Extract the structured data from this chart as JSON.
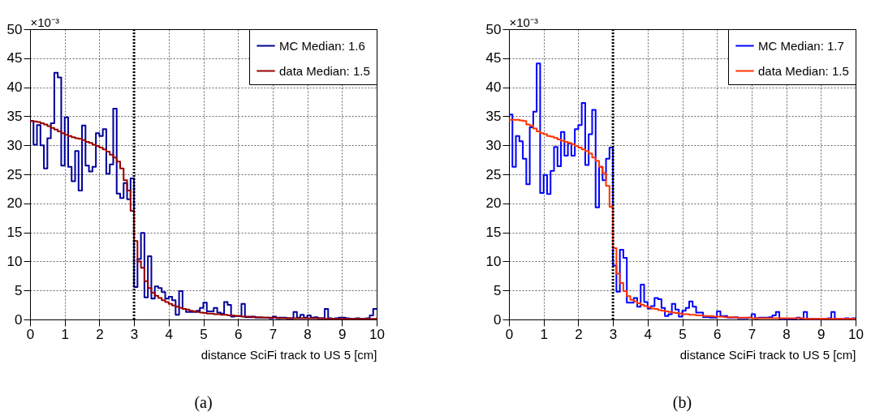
{
  "chart_data": [
    {
      "type": "histogram",
      "xlabel": "distance SciFi track to US 5 [cm]",
      "ylabel": "×10⁻³",
      "annotations": [
        "(a)"
      ],
      "xlim": [
        0,
        10
      ],
      "xticks": [
        0,
        1,
        2,
        3,
        4,
        5,
        6,
        7,
        8,
        9,
        10
      ],
      "ylim": [
        0,
        50
      ],
      "yticks": [
        0,
        5,
        10,
        15,
        20,
        25,
        30,
        35,
        40,
        45,
        50
      ],
      "grid": true,
      "legend": "top right",
      "bins": [
        0,
        0.1,
        0.2,
        0.3,
        0.4,
        0.5,
        0.6,
        0.7,
        0.8,
        0.9,
        1,
        1.1,
        1.2,
        1.3,
        1.4,
        1.5,
        1.6,
        1.7,
        1.8,
        1.9,
        2,
        2.1,
        2.2,
        2.3,
        2.4,
        2.5,
        2.6,
        2.7,
        2.8,
        2.9,
        3,
        3.1,
        3.2,
        3.3,
        3.4,
        3.5,
        3.6,
        3.7,
        3.8,
        3.9,
        4,
        4.1,
        4.2,
        4.3,
        4.4,
        4.5,
        4.6,
        4.7,
        4.8,
        4.9,
        5,
        5.1,
        5.2,
        5.3,
        5.4,
        5.5,
        5.6,
        5.7,
        5.8,
        5.9,
        6,
        6.1,
        6.2,
        6.3,
        6.4,
        6.5,
        6.6,
        6.7,
        6.8,
        6.9,
        7,
        7.1,
        7.2,
        7.3,
        7.4,
        7.5,
        7.6,
        7.7,
        7.8,
        7.9,
        8,
        8.1,
        8.2,
        8.3,
        8.4,
        8.5,
        8.6,
        8.7,
        8.8,
        8.9,
        9,
        9.1,
        9.2,
        9.3,
        9.4,
        9.5,
        9.6,
        9.7,
        9.8,
        9.9,
        10
      ],
      "ref_lines": [
        {
          "axis": "x",
          "value": 3,
          "color": "#000000",
          "line_style": "dotted"
        }
      ],
      "series": [
        {
          "name": "MC Median: 1.6",
          "color": "#000099",
          "values": [
            34.2,
            30.1,
            33.5,
            30.0,
            26.0,
            31.2,
            33.8,
            42.5,
            41.7,
            26.5,
            34.8,
            26.3,
            23.8,
            29.0,
            22.2,
            33.4,
            26.5,
            25.5,
            26.3,
            32.1,
            31.6,
            32.8,
            25.1,
            26.7,
            36.3,
            21.7,
            20.9,
            23.5,
            20.7,
            24.3,
            5.6,
            10.4,
            14.9,
            3.8,
            10.9,
            3.6,
            5.7,
            5.4,
            4.7,
            3.6,
            3.9,
            3.3,
            0.8,
            4.9,
            1.8,
            1.3,
            1.3,
            1.3,
            1.5,
            2.0,
            2.9,
            1.4,
            1.4,
            2.0,
            1.2,
            1.0,
            3.0,
            2.5,
            0.5,
            0.6,
            0.6,
            2.7,
            0.4,
            0.4,
            0.5,
            0.3,
            0.3,
            0.3,
            0.3,
            0.2,
            0.5,
            0.2,
            0.3,
            0.3,
            0.2,
            0.2,
            1.3,
            0.3,
            0.8,
            0.3,
            0.7,
            0.3,
            0.4,
            0.2,
            0.2,
            1.8,
            0.2,
            0.1,
            0.2,
            0.3,
            0.3,
            0.2,
            0.1,
            0.1,
            0.2,
            0.1,
            0.1,
            0.2,
            0.7,
            1.8
          ]
        },
        {
          "name": "data Median: 1.5",
          "color": "#990000",
          "values": [
            34.2,
            34.1,
            34.0,
            33.8,
            33.6,
            33.3,
            33.0,
            32.7,
            32.4,
            32.1,
            31.8,
            31.6,
            31.4,
            31.2,
            31.1,
            30.9,
            30.6,
            30.4,
            30.1,
            29.9,
            29.6,
            29.3,
            28.9,
            28.4,
            27.9,
            27.2,
            26.0,
            24.0,
            22.2,
            18.7,
            13.5,
            10.0,
            8.9,
            6.6,
            5.4,
            4.6,
            4.1,
            3.7,
            3.3,
            3.0,
            2.7,
            2.4,
            2.2,
            2.0,
            1.8,
            1.7,
            1.5,
            1.4,
            1.3,
            1.2,
            1.1,
            1.0,
            1.0,
            0.9,
            0.9,
            0.8,
            0.8,
            0.7,
            0.7,
            0.6,
            0.6,
            0.5,
            0.5,
            0.5,
            0.4,
            0.4,
            0.4,
            0.3,
            0.3,
            0.3,
            0.3,
            0.3,
            0.2,
            0.2,
            0.2,
            0.2,
            0.2,
            0.2,
            0.2,
            0.2,
            0.2,
            0.2,
            0.2,
            0.2,
            0.2,
            0.1,
            0.1,
            0.1,
            0.1,
            0.1,
            0.1,
            0.1,
            0.1,
            0.1,
            0.1,
            0.1,
            0.1,
            0.1,
            0.1,
            0.1
          ]
        }
      ]
    },
    {
      "type": "histogram",
      "xlabel": "distance SciFi track to US 5 [cm]",
      "ylabel": "×10⁻³",
      "annotations": [
        "(b)"
      ],
      "xlim": [
        0,
        10
      ],
      "xticks": [
        0,
        1,
        2,
        3,
        4,
        5,
        6,
        7,
        8,
        9,
        10
      ],
      "ylim": [
        0,
        50
      ],
      "yticks": [
        0,
        5,
        10,
        15,
        20,
        25,
        30,
        35,
        40,
        45,
        50
      ],
      "grid": true,
      "legend": "top right",
      "bins": [
        0,
        0.1,
        0.2,
        0.3,
        0.4,
        0.5,
        0.6,
        0.7,
        0.8,
        0.9,
        1,
        1.1,
        1.2,
        1.3,
        1.4,
        1.5,
        1.6,
        1.7,
        1.8,
        1.9,
        2,
        2.1,
        2.2,
        2.3,
        2.4,
        2.5,
        2.6,
        2.7,
        2.8,
        2.9,
        3,
        3.1,
        3.2,
        3.3,
        3.4,
        3.5,
        3.6,
        3.7,
        3.8,
        3.9,
        4,
        4.1,
        4.2,
        4.3,
        4.4,
        4.5,
        4.6,
        4.7,
        4.8,
        4.9,
        5,
        5.1,
        5.2,
        5.3,
        5.4,
        5.5,
        5.6,
        5.7,
        5.8,
        5.9,
        6,
        6.1,
        6.2,
        6.3,
        6.4,
        6.5,
        6.6,
        6.7,
        6.8,
        6.9,
        7,
        7.1,
        7.2,
        7.3,
        7.4,
        7.5,
        7.6,
        7.7,
        7.8,
        7.9,
        8,
        8.1,
        8.2,
        8.3,
        8.4,
        8.5,
        8.6,
        8.7,
        8.8,
        8.9,
        9,
        9.1,
        9.2,
        9.3,
        9.4,
        9.5,
        9.6,
        9.7,
        9.8,
        9.9,
        10
      ],
      "ref_lines": [
        {
          "axis": "x",
          "value": 3,
          "color": "#000000",
          "line_style": "dotted"
        }
      ],
      "series": [
        {
          "name": "MC Median: 1.7",
          "color": "#0000ff",
          "values": [
            35.3,
            26.3,
            31.6,
            30.7,
            27.7,
            23.3,
            33.1,
            35.8,
            44.1,
            21.8,
            24.9,
            21.6,
            25.6,
            29.7,
            26.4,
            32.3,
            28.2,
            30.3,
            28.2,
            32.8,
            33.5,
            37.3,
            26.6,
            31.9,
            36.1,
            19.3,
            26.3,
            24.0,
            27.7,
            29.6,
            9.3,
            4.8,
            12.0,
            10.6,
            2.9,
            2.9,
            3.7,
            2.2,
            6.0,
            3.0,
            1.9,
            2.3,
            3.7,
            3.5,
            2.0,
            0.6,
            0.9,
            2.7,
            1.7,
            0.5,
            1.5,
            2.0,
            3.1,
            2.2,
            1.2,
            1.2,
            0.4,
            0.4,
            0.3,
            0.3,
            1.4,
            0.6,
            0.6,
            0.3,
            0.3,
            0.4,
            0.2,
            0.2,
            0.2,
            0.3,
            0.9,
            0.2,
            0.3,
            0.3,
            0.3,
            0.4,
            0.7,
            1.3,
            0.1,
            0.1,
            0.1,
            0.1,
            0.1,
            0.3,
            0.1,
            1.3,
            0.1,
            0.1,
            0.1,
            0.1,
            0.1,
            0.1,
            0.2,
            1.3,
            0.1,
            0.1,
            0.1,
            0.2,
            0.1,
            0.2
          ]
        },
        {
          "name": "data Median: 1.5",
          "color": "#ff3300",
          "values": [
            34.4,
            34.4,
            34.4,
            34.3,
            34.2,
            33.6,
            33.4,
            32.9,
            32.4,
            32.1,
            31.9,
            31.6,
            31.5,
            31.3,
            31.0,
            30.8,
            30.6,
            30.4,
            30.2,
            29.9,
            29.6,
            29.3,
            29.0,
            28.6,
            27.9,
            27.3,
            26.3,
            25.2,
            23.0,
            19.4,
            12.3,
            7.9,
            6.3,
            4.9,
            4.0,
            3.4,
            3.1,
            2.8,
            2.5,
            2.3,
            2.1,
            1.9,
            1.8,
            1.6,
            1.5,
            1.4,
            1.3,
            1.2,
            1.1,
            1.0,
            0.9,
            0.9,
            0.8,
            0.8,
            0.7,
            0.7,
            0.6,
            0.6,
            0.6,
            0.5,
            0.5,
            0.5,
            0.4,
            0.4,
            0.4,
            0.3,
            0.3,
            0.3,
            0.3,
            0.3,
            0.2,
            0.2,
            0.2,
            0.2,
            0.2,
            0.2,
            0.2,
            0.2,
            0.2,
            0.2,
            0.2,
            0.2,
            0.2,
            0.2,
            0.2,
            0.1,
            0.1,
            0.1,
            0.1,
            0.1,
            0.1,
            0.1,
            0.1,
            0.1,
            0.1,
            0.1,
            0.1,
            0.1,
            0.1,
            0.1
          ]
        }
      ]
    }
  ]
}
